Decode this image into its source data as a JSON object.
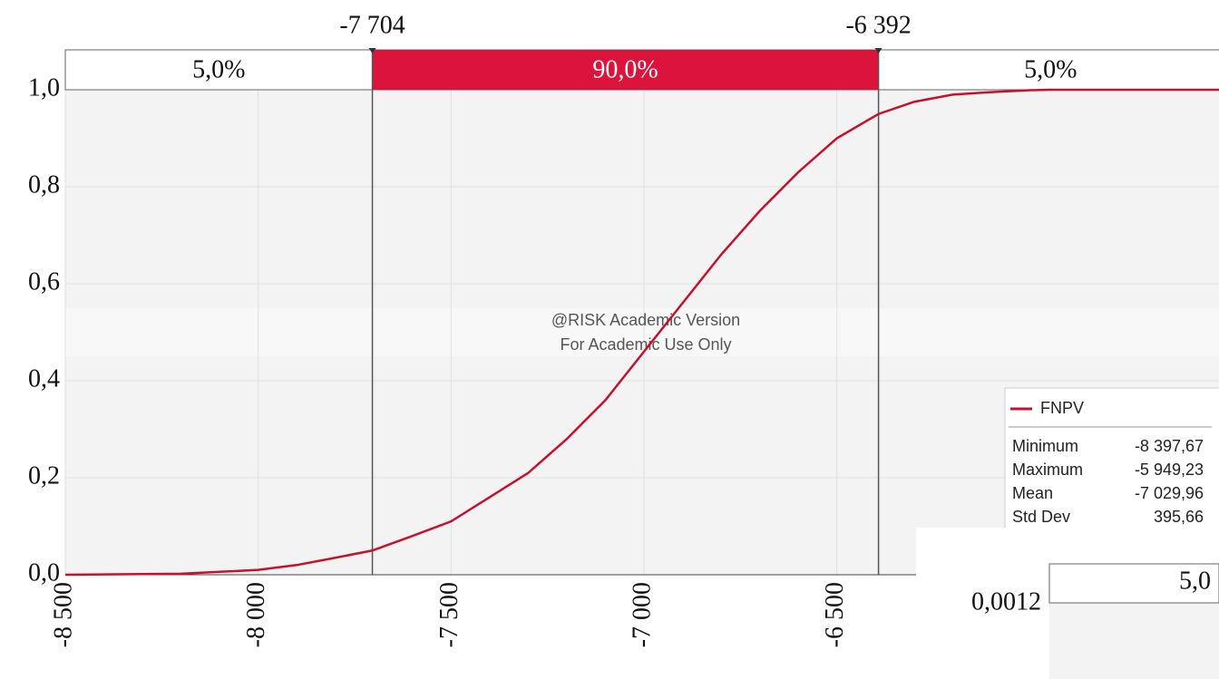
{
  "chart_data": {
    "type": "line",
    "x": [
      -8500,
      -8200,
      -8000,
      -7900,
      -7800,
      -7704,
      -7600,
      -7500,
      -7400,
      -7300,
      -7200,
      -7100,
      -7000,
      -6900,
      -6800,
      -6700,
      -6600,
      -6500,
      -6392,
      -6300,
      -6200,
      -6100,
      -6000,
      -5949.23,
      -5500
    ],
    "series": [
      {
        "name": "FNPV",
        "color": "#c8102e",
        "values": [
          0,
          0.002,
          0.01,
          0.02,
          0.035,
          0.05,
          0.08,
          0.11,
          0.16,
          0.21,
          0.28,
          0.36,
          0.46,
          0.56,
          0.66,
          0.75,
          0.83,
          0.9,
          0.95,
          0.975,
          0.99,
          0.995,
          0.999,
          1.0,
          1.0
        ]
      }
    ],
    "xlim": [
      -8500,
      -5500
    ],
    "xticks": [
      {
        "value": -8500,
        "label": "-8 500"
      },
      {
        "value": -8000,
        "label": "-8 000"
      },
      {
        "value": -7500,
        "label": "-7 500"
      },
      {
        "value": -7000,
        "label": "-7 000"
      },
      {
        "value": -6500,
        "label": "-6 500"
      }
    ],
    "ylim": [
      0,
      1
    ],
    "yticks": [
      {
        "value": 0,
        "label": "0,0"
      },
      {
        "value": 0.2,
        "label": "0,2"
      },
      {
        "value": 0.4,
        "label": "0,4"
      },
      {
        "value": 0.6,
        "label": "0,6"
      },
      {
        "value": 0.8,
        "label": "0,8"
      },
      {
        "value": 1,
        "label": "1,0"
      }
    ],
    "grid": true,
    "delimiters": [
      {
        "value": -7704,
        "label": "-7 704"
      },
      {
        "value": -6392,
        "label": "-6 392"
      }
    ],
    "region_labels": [
      "5,0%",
      "90,0%",
      "5,0%"
    ],
    "band_color": "#dc143c",
    "watermark": [
      "@RISK Academic Version",
      "For Academic Use Only"
    ],
    "statistics": [
      {
        "name": "Minimum",
        "label": "-8 397,67"
      },
      {
        "name": "Maximum",
        "label": "-5 949,23"
      },
      {
        "name": "Mean",
        "label": "-7 029,96"
      },
      {
        "name": "Std Dev",
        "label": "395,66"
      }
    ],
    "inset": {
      "ytick_label": "0,0012",
      "band_label": "5,0"
    }
  }
}
